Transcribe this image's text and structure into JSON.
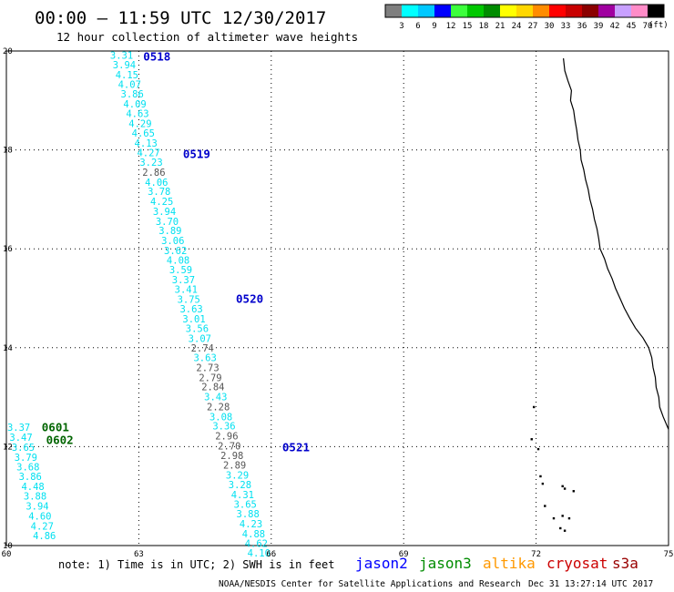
{
  "header": {
    "title": "00:00 – 11:59 UTC 12/30/2017",
    "subtitle": "12 hour collection of altimeter wave heights"
  },
  "colorbar": {
    "colors": [
      "#7f7f7f",
      "#00ffff",
      "#00c8ff",
      "#0000ff",
      "#3cff3c",
      "#00c800",
      "#008c00",
      "#ffff00",
      "#ffd700",
      "#ff8c00",
      "#ff0000",
      "#c80000",
      "#8b0000",
      "#a000a0",
      "#c8a0ff",
      "#ff8cc8",
      "#000000"
    ],
    "labels": [
      "3",
      "6",
      "9",
      "12",
      "15",
      "18",
      "21",
      "24",
      "27",
      "30",
      "33",
      "36",
      "39",
      "42",
      "45",
      "70"
    ],
    "unit": "(ft)"
  },
  "chart_data": {
    "type": "scatter",
    "xlim": [
      60,
      75
    ],
    "ylim": [
      10,
      20
    ],
    "x_ticks": [
      "60",
      "63",
      "66",
      "69",
      "72",
      "75"
    ],
    "y_ticks": [
      "10",
      "12",
      "14",
      "16",
      "18",
      "20"
    ],
    "grid": true,
    "tracks": [
      {
        "satellite": "jason2",
        "passes": [
          {
            "label": "0518",
            "lon": 63.1,
            "lat": 19.9
          },
          {
            "label": "0519",
            "lon": 64.0,
            "lat": 17.93
          },
          {
            "label": "0520",
            "lon": 65.2,
            "lat": 15.0
          },
          {
            "label": "0521",
            "lon": 66.25,
            "lat": 12.0
          }
        ],
        "points": [
          {
            "lon": 62.35,
            "lat": 19.92,
            "v": "3.31",
            "c": "cyan"
          },
          {
            "lon": 62.41,
            "lat": 19.72,
            "v": "3.94",
            "c": "cyan"
          },
          {
            "lon": 62.47,
            "lat": 19.52,
            "v": "4.15",
            "c": "cyan"
          },
          {
            "lon": 62.53,
            "lat": 19.33,
            "v": "4.07",
            "c": "cyan"
          },
          {
            "lon": 62.59,
            "lat": 19.13,
            "v": "3.86",
            "c": "cyan"
          },
          {
            "lon": 62.65,
            "lat": 18.93,
            "v": "4.09",
            "c": "cyan"
          },
          {
            "lon": 62.71,
            "lat": 18.74,
            "v": "4.63",
            "c": "cyan"
          },
          {
            "lon": 62.77,
            "lat": 18.54,
            "v": "4.29",
            "c": "cyan"
          },
          {
            "lon": 62.84,
            "lat": 18.34,
            "v": "4.65",
            "c": "cyan"
          },
          {
            "lon": 62.9,
            "lat": 18.14,
            "v": "4.13",
            "c": "cyan"
          },
          {
            "lon": 62.96,
            "lat": 17.95,
            "v": "4.27",
            "c": "cyan"
          },
          {
            "lon": 63.02,
            "lat": 17.75,
            "v": "3.23",
            "c": "cyan"
          },
          {
            "lon": 63.08,
            "lat": 17.55,
            "v": "2.86",
            "c": "gray"
          },
          {
            "lon": 63.14,
            "lat": 17.35,
            "v": "4.06",
            "c": "cyan"
          },
          {
            "lon": 63.2,
            "lat": 17.16,
            "v": "3.78",
            "c": "cyan"
          },
          {
            "lon": 63.26,
            "lat": 16.96,
            "v": "4.25",
            "c": "cyan"
          },
          {
            "lon": 63.32,
            "lat": 16.76,
            "v": "3.94",
            "c": "cyan"
          },
          {
            "lon": 63.38,
            "lat": 16.56,
            "v": "3.70",
            "c": "cyan"
          },
          {
            "lon": 63.45,
            "lat": 16.37,
            "v": "3.89",
            "c": "cyan"
          },
          {
            "lon": 63.51,
            "lat": 16.17,
            "v": "3.06",
            "c": "cyan"
          },
          {
            "lon": 63.57,
            "lat": 15.97,
            "v": "3.62",
            "c": "cyan"
          },
          {
            "lon": 63.63,
            "lat": 15.77,
            "v": "4.08",
            "c": "cyan"
          },
          {
            "lon": 63.69,
            "lat": 15.58,
            "v": "3.59",
            "c": "cyan"
          },
          {
            "lon": 63.75,
            "lat": 15.38,
            "v": "3.37",
            "c": "cyan"
          },
          {
            "lon": 63.81,
            "lat": 15.18,
            "v": "3.41",
            "c": "cyan"
          },
          {
            "lon": 63.87,
            "lat": 14.98,
            "v": "3.75",
            "c": "cyan"
          },
          {
            "lon": 63.93,
            "lat": 14.79,
            "v": "3.63",
            "c": "cyan"
          },
          {
            "lon": 63.99,
            "lat": 14.59,
            "v": "3.01",
            "c": "cyan"
          },
          {
            "lon": 64.06,
            "lat": 14.39,
            "v": "3.56",
            "c": "cyan"
          },
          {
            "lon": 64.12,
            "lat": 14.19,
            "v": "3.07",
            "c": "cyan"
          },
          {
            "lon": 64.18,
            "lat": 14.0,
            "v": "2.74",
            "c": "gray"
          },
          {
            "lon": 64.24,
            "lat": 13.8,
            "v": "3.63",
            "c": "cyan"
          },
          {
            "lon": 64.3,
            "lat": 13.6,
            "v": "2.73",
            "c": "gray"
          },
          {
            "lon": 64.36,
            "lat": 13.4,
            "v": "2.79",
            "c": "gray"
          },
          {
            "lon": 64.42,
            "lat": 13.21,
            "v": "2.84",
            "c": "gray"
          },
          {
            "lon": 64.48,
            "lat": 13.01,
            "v": "3.43",
            "c": "cyan"
          },
          {
            "lon": 64.54,
            "lat": 12.81,
            "v": "2.28",
            "c": "gray"
          },
          {
            "lon": 64.6,
            "lat": 12.61,
            "v": "3.08",
            "c": "cyan"
          },
          {
            "lon": 64.67,
            "lat": 12.42,
            "v": "3.36",
            "c": "cyan"
          },
          {
            "lon": 64.73,
            "lat": 12.22,
            "v": "2.96",
            "c": "gray"
          },
          {
            "lon": 64.79,
            "lat": 12.02,
            "v": "2.70",
            "c": "gray"
          },
          {
            "lon": 64.85,
            "lat": 11.82,
            "v": "2.98",
            "c": "gray"
          },
          {
            "lon": 64.91,
            "lat": 11.63,
            "v": "2.89",
            "c": "gray"
          },
          {
            "lon": 64.97,
            "lat": 11.43,
            "v": "3.29",
            "c": "cyan"
          },
          {
            "lon": 65.03,
            "lat": 11.23,
            "v": "3.28",
            "c": "cyan"
          },
          {
            "lon": 65.09,
            "lat": 11.03,
            "v": "4.31",
            "c": "cyan"
          },
          {
            "lon": 65.15,
            "lat": 10.84,
            "v": "3.65",
            "c": "cyan"
          },
          {
            "lon": 65.21,
            "lat": 10.64,
            "v": "3.88",
            "c": "cyan"
          },
          {
            "lon": 65.28,
            "lat": 10.44,
            "v": "4.23",
            "c": "cyan"
          },
          {
            "lon": 65.34,
            "lat": 10.24,
            "v": "4.88",
            "c": "cyan"
          },
          {
            "lon": 65.4,
            "lat": 10.05,
            "v": "4.62",
            "c": "cyan"
          },
          {
            "lon": 65.46,
            "lat": 9.85,
            "v": "4.10",
            "c": "cyan"
          }
        ]
      },
      {
        "satellite": "jason3",
        "passes": [
          {
            "label": "0601",
            "lon": 60.8,
            "lat": 12.4
          },
          {
            "label": "0602",
            "lon": 60.9,
            "lat": 12.15
          }
        ],
        "points": [
          {
            "lon": 60.02,
            "lat": 12.39,
            "v": "3.37",
            "c": "cyan"
          },
          {
            "lon": 60.07,
            "lat": 12.19,
            "v": "3.47",
            "c": "cyan"
          },
          {
            "lon": 60.12,
            "lat": 11.99,
            "v": "3.65",
            "c": "cyan"
          },
          {
            "lon": 60.18,
            "lat": 11.79,
            "v": "3.79",
            "c": "cyan"
          },
          {
            "lon": 60.23,
            "lat": 11.59,
            "v": "3.68",
            "c": "cyan"
          },
          {
            "lon": 60.28,
            "lat": 11.4,
            "v": "3.86",
            "c": "cyan"
          },
          {
            "lon": 60.34,
            "lat": 11.2,
            "v": "4.48",
            "c": "cyan"
          },
          {
            "lon": 60.39,
            "lat": 11.0,
            "v": "3.88",
            "c": "cyan"
          },
          {
            "lon": 60.44,
            "lat": 10.8,
            "v": "3.94",
            "c": "cyan"
          },
          {
            "lon": 60.5,
            "lat": 10.6,
            "v": "4.60",
            "c": "cyan"
          },
          {
            "lon": 60.55,
            "lat": 10.4,
            "v": "4.27",
            "c": "cyan"
          },
          {
            "lon": 60.6,
            "lat": 10.2,
            "v": "4.86",
            "c": "cyan"
          }
        ]
      }
    ]
  },
  "coastline": {
    "mainland": [
      [
        72.62,
        19.85
      ],
      [
        72.65,
        19.6
      ],
      [
        72.72,
        19.4
      ],
      [
        72.8,
        19.2
      ],
      [
        72.78,
        19.0
      ],
      [
        72.85,
        18.8
      ],
      [
        72.88,
        18.6
      ],
      [
        72.92,
        18.4
      ],
      [
        72.95,
        18.2
      ],
      [
        73.0,
        18.0
      ],
      [
        73.02,
        17.8
      ],
      [
        73.08,
        17.6
      ],
      [
        73.12,
        17.4
      ],
      [
        73.18,
        17.2
      ],
      [
        73.22,
        17.0
      ],
      [
        73.28,
        16.8
      ],
      [
        73.32,
        16.6
      ],
      [
        73.38,
        16.4
      ],
      [
        73.42,
        16.2
      ],
      [
        73.45,
        16.0
      ],
      [
        73.55,
        15.8
      ],
      [
        73.62,
        15.6
      ],
      [
        73.72,
        15.4
      ],
      [
        73.8,
        15.2
      ],
      [
        73.9,
        15.0
      ],
      [
        74.0,
        14.8
      ],
      [
        74.12,
        14.6
      ],
      [
        74.25,
        14.4
      ],
      [
        74.42,
        14.2
      ],
      [
        74.55,
        14.0
      ],
      [
        74.62,
        13.8
      ],
      [
        74.65,
        13.6
      ],
      [
        74.7,
        13.4
      ],
      [
        74.72,
        13.2
      ],
      [
        74.78,
        13.0
      ],
      [
        74.8,
        12.8
      ],
      [
        74.88,
        12.6
      ],
      [
        75.0,
        12.35
      ]
    ],
    "islands": [
      [
        71.9,
        12.15
      ],
      [
        72.05,
        11.95
      ],
      [
        72.15,
        11.25
      ],
      [
        72.6,
        11.2
      ],
      [
        72.65,
        11.15
      ],
      [
        72.85,
        11.1
      ],
      [
        72.2,
        10.8
      ],
      [
        72.4,
        10.55
      ],
      [
        72.6,
        10.6
      ],
      [
        72.75,
        10.55
      ],
      [
        72.55,
        10.35
      ],
      [
        72.65,
        10.3
      ],
      [
        71.95,
        12.8
      ],
      [
        72.1,
        11.4
      ]
    ]
  },
  "legend": {
    "note": "note: 1) Time is in UTC; 2) SWH is in feet",
    "satellites": [
      {
        "name": "jason2",
        "color": "#0000ff"
      },
      {
        "name": "jason3",
        "color": "#008c00"
      },
      {
        "name": "altika",
        "color": "#ff9900"
      },
      {
        "name": "cryosat",
        "color": "#cc0000"
      },
      {
        "name": "s3a",
        "color": "#990000"
      }
    ],
    "credit": "NOAA/NESDIS Center for Satellite Applications and Research",
    "timestamp": "Dec 31 13:27:14 UTC 2017"
  },
  "colors": {
    "cyan": "#00e0f0",
    "gray": "#555555",
    "pass_jason2": "#0000cc",
    "pass_jason3": "#006400",
    "grid": "#000000"
  }
}
